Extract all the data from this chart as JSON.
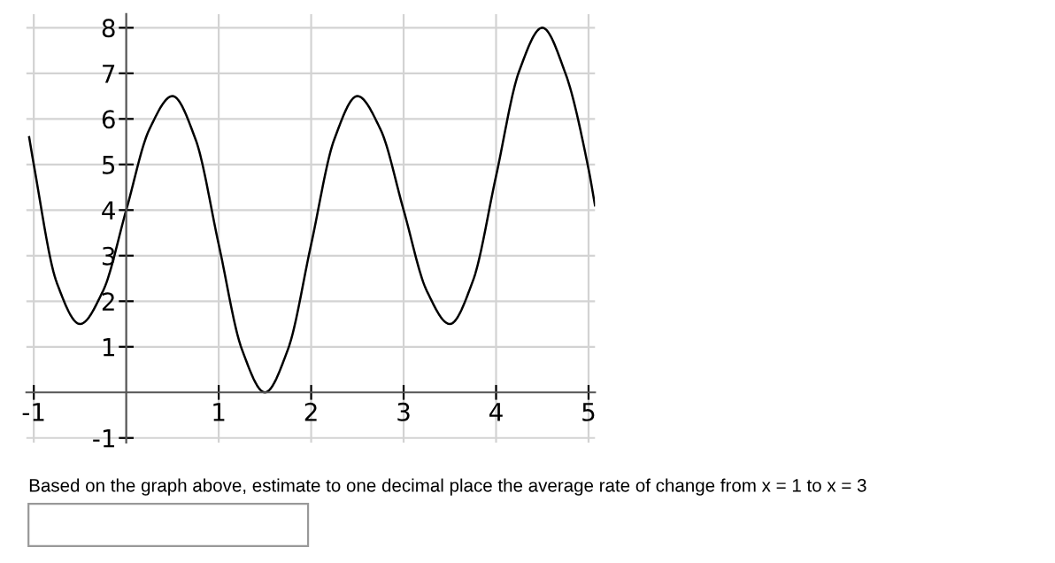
{
  "chart_data": {
    "type": "line",
    "x": [
      -1.05,
      -1,
      -0.75,
      -0.5,
      -0.25,
      0,
      0.25,
      0.5,
      0.75,
      1,
      1.25,
      1.5,
      1.75,
      2,
      2.25,
      2.5,
      2.75,
      3,
      3.25,
      3.5,
      3.75,
      4,
      4.25,
      4.5,
      4.75,
      5,
      5.07
    ],
    "series": [
      {
        "color": "#000000",
        "values": [
          5.6,
          5.0,
          2.4,
          1.5,
          2.23,
          4,
          5.77,
          6.5,
          5.55,
          3.25,
          0.95,
          0,
          0.95,
          3.25,
          5.55,
          6.5,
          5.77,
          4,
          2.23,
          1.5,
          2.45,
          4.75,
          7.05,
          8,
          7.0,
          4.9,
          4.1
        ]
      }
    ],
    "xlim": [
      -1.08,
      5.07
    ],
    "ylim": [
      -1.1,
      8.3
    ],
    "xticks": [
      -1,
      1,
      2,
      3,
      4,
      5
    ],
    "yticks": [
      -1,
      1,
      2,
      3,
      4,
      5,
      6,
      7,
      8
    ],
    "grid": true,
    "marker": "none",
    "line_style": "solid",
    "annotations": [
      "Based on the graph above, estimate to one decimal place the average rate of change from x = 1 to x = 3"
    ]
  }
}
